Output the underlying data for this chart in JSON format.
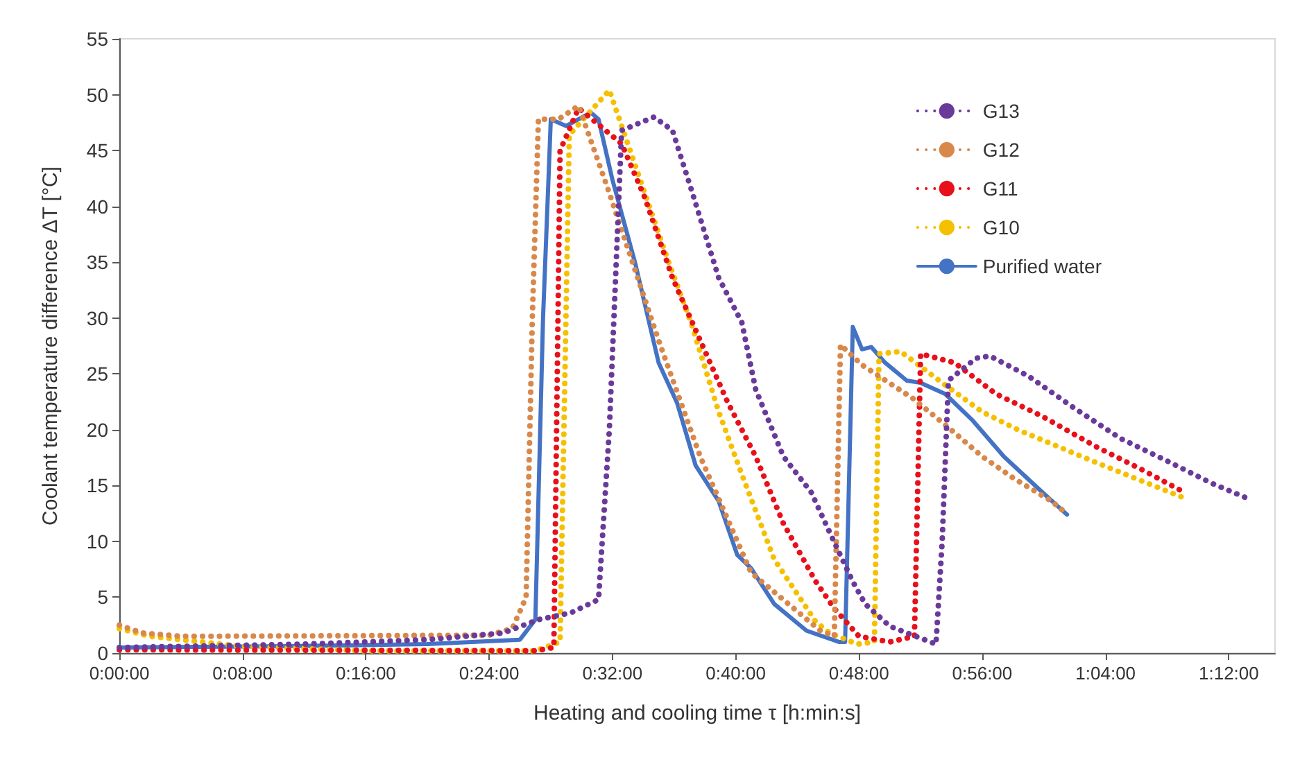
{
  "chart_data": {
    "type": "line",
    "xlabel": "Heating and cooling time τ [h:min:s]",
    "ylabel": "Coolant temperature difference ΔT [°C]",
    "xlim": [
      0,
      1.25
    ],
    "ylim": [
      0,
      55
    ],
    "xticks": [
      {
        "value": 0,
        "label": "0:00:00"
      },
      {
        "value": 0.1333,
        "label": "0:08:00"
      },
      {
        "value": 0.2667,
        "label": "0:16:00"
      },
      {
        "value": 0.4,
        "label": "0:24:00"
      },
      {
        "value": 0.5333,
        "label": "0:32:00"
      },
      {
        "value": 0.6667,
        "label": "0:40:00"
      },
      {
        "value": 0.8,
        "label": "0:48:00"
      },
      {
        "value": 0.9333,
        "label": "0:56:00"
      },
      {
        "value": 1.0667,
        "label": "1:04:00"
      },
      {
        "value": 1.2,
        "label": "1:12:00"
      }
    ],
    "yticks": [
      0,
      5,
      10,
      15,
      20,
      25,
      30,
      35,
      40,
      45,
      50,
      55
    ],
    "grid": false,
    "legend": "top right",
    "marker": "none",
    "series": [
      {
        "name": "G13",
        "color": "#6a3a9a",
        "line_style": "dotted",
        "x": [
          0,
          0.2,
          0.3333,
          0.415,
          0.4533,
          0.4883,
          0.5183,
          0.53,
          0.5433,
          0.5783,
          0.5983,
          0.6183,
          0.6483,
          0.6733,
          0.6883,
          0.7183,
          0.7483,
          0.7683,
          0.7933,
          0.8067,
          0.8333,
          0.8833,
          0.89,
          0.8967,
          0.9267,
          0.9417,
          0.9833,
          1.0317,
          1.0833,
          1.1333,
          1.1817,
          1.2217
        ],
        "values": [
          0.5,
          0.8,
          1.2,
          1.8,
          3,
          3.6,
          4.8,
          20,
          46.8,
          48,
          46.8,
          41.6,
          33.6,
          29.6,
          23.6,
          17.6,
          14.4,
          10.8,
          6.4,
          4.4,
          2.4,
          0.8,
          10,
          24.4,
          26.4,
          26.6,
          24.8,
          22,
          19.2,
          17.2,
          15.2,
          13.8
        ]
      },
      {
        "name": "G12",
        "color": "#d8884a",
        "line_style": "dotted",
        "x": [
          0,
          0.025,
          0.0667,
          0.4,
          0.425,
          0.44,
          0.4467,
          0.4533,
          0.475,
          0.4967,
          0.5283,
          0.5833,
          0.6283,
          0.6833,
          0.7583,
          0.7733,
          0.78,
          0.8033,
          0.8583,
          0.8967,
          0.9333,
          0.9683,
          1.0083,
          1.02
        ],
        "values": [
          2.5,
          1.8,
          1.5,
          1.6,
          2.2,
          5,
          30,
          47.8,
          47.8,
          49,
          41.6,
          28,
          17.6,
          7.2,
          2,
          1.5,
          27.6,
          25.8,
          22.8,
          20.2,
          17.6,
          15.6,
          13.6,
          12.8
        ]
      },
      {
        "name": "G11",
        "color": "#e8101a",
        "line_style": "dotted",
        "x": [
          0,
          0.45,
          0.47,
          0.4767,
          0.4967,
          0.5433,
          0.5683,
          0.5983,
          0.6283,
          0.6583,
          0.6883,
          0.7183,
          0.7533,
          0.7733,
          0.8,
          0.8333,
          0.86,
          0.8667,
          0.9033,
          0.9483,
          0.9983,
          1.0583,
          1.1067,
          1.1517
        ],
        "values": [
          0.3,
          0.2,
          0.5,
          45,
          48.8,
          45.6,
          40.8,
          33.6,
          28,
          22.4,
          17.6,
          11.6,
          6.4,
          4,
          1.5,
          1,
          1.5,
          26.8,
          26,
          23.2,
          21.2,
          18.4,
          16.4,
          14.4
        ]
      },
      {
        "name": "G10",
        "color": "#f5c000",
        "line_style": "dotted",
        "x": [
          0,
          0.0333,
          0.1333,
          0.2667,
          0.45,
          0.4767,
          0.4867,
          0.53,
          0.5633,
          0.5933,
          0.6183,
          0.6483,
          0.6733,
          0.7083,
          0.7533,
          0.7683,
          0.7983,
          0.8167,
          0.8217,
          0.845,
          0.8933,
          0.9333,
          0.9717,
          1.0583,
          1.1483
        ],
        "values": [
          2.2,
          1.5,
          0.6,
          0.2,
          0.2,
          1,
          46.4,
          50.4,
          42.4,
          35.2,
          29.6,
          21.6,
          16,
          8.4,
          2.8,
          1.8,
          0.8,
          1,
          26.8,
          27,
          24,
          21.6,
          20,
          17,
          14
        ]
      },
      {
        "name": "Purified water",
        "color": "#4472c4",
        "line_style": "solid",
        "x": [
          0,
          0.1667,
          0.3333,
          0.4333,
          0.45,
          0.4583,
          0.4667,
          0.4833,
          0.51,
          0.5183,
          0.5333,
          0.5583,
          0.5833,
          0.6033,
          0.6233,
          0.6483,
          0.6683,
          0.6833,
          0.7083,
          0.7433,
          0.7783,
          0.785,
          0.7933,
          0.8033,
          0.8133,
          0.8283,
          0.8517,
          0.8667,
          0.8933,
          0.9233,
          0.9567,
          0.9983,
          1.025
        ],
        "values": [
          0.5,
          0.6,
          0.8,
          1.2,
          3,
          30,
          47.8,
          47.2,
          48.4,
          47.8,
          42.4,
          34.8,
          26,
          22.4,
          16.8,
          13.6,
          8.8,
          7.6,
          4.4,
          2,
          1,
          1,
          29.2,
          27.2,
          27.4,
          26,
          24.4,
          24.2,
          23.2,
          20.8,
          17.6,
          14.4,
          12.4
        ]
      }
    ]
  }
}
